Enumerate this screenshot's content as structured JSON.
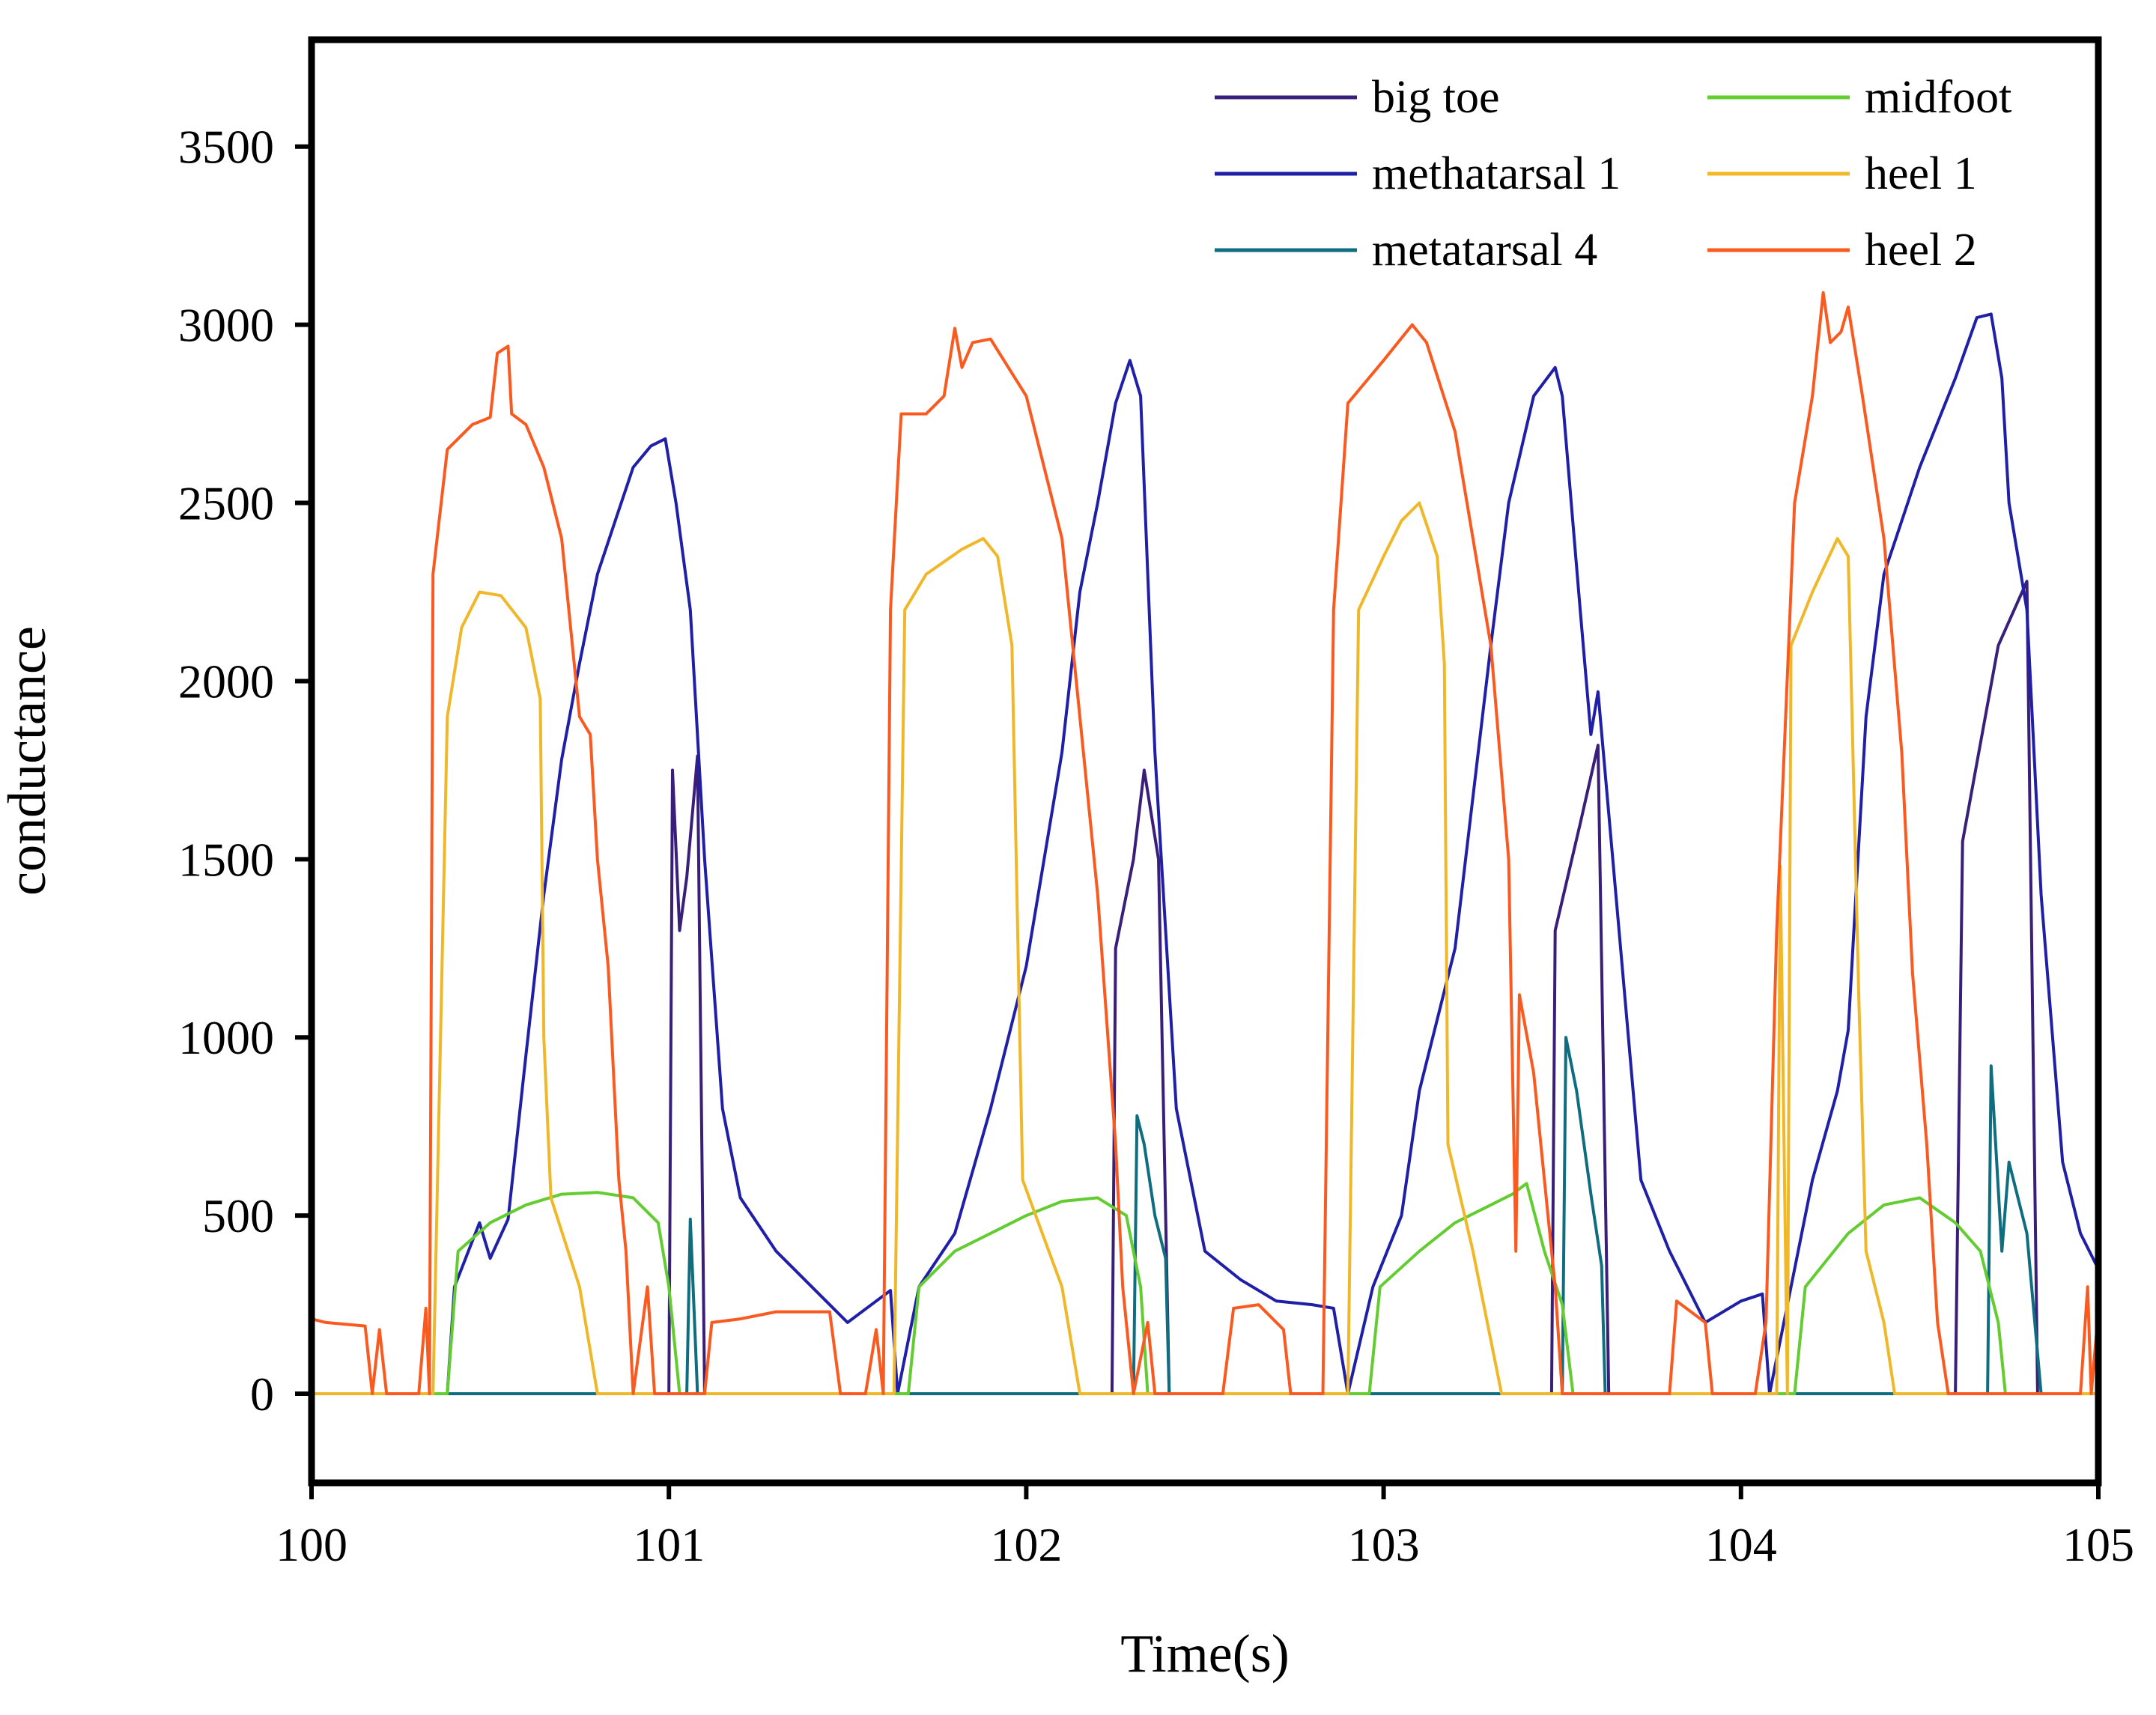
{
  "chart_data": {
    "type": "line",
    "title": "",
    "xlabel": "Time(s)",
    "ylabel": "conductance",
    "xlim": [
      100,
      105
    ],
    "ylim": [
      -250,
      3800
    ],
    "xticks": [
      100,
      101,
      102,
      103,
      104,
      105
    ],
    "yticks": [
      0,
      500,
      1000,
      1500,
      2000,
      2500,
      3000,
      3500
    ],
    "grid": false,
    "legend_position": "top-right",
    "series": [
      {
        "name": "big toe",
        "color": "#3a1f7a",
        "points": [
          [
            100,
            0
          ],
          [
            101.0,
            0
          ],
          [
            101.01,
            1750
          ],
          [
            101.03,
            1300
          ],
          [
            101.05,
            1450
          ],
          [
            101.08,
            1790
          ],
          [
            101.1,
            0
          ],
          [
            102.24,
            0
          ],
          [
            102.25,
            1250
          ],
          [
            102.3,
            1500
          ],
          [
            102.33,
            1750
          ],
          [
            102.37,
            1500
          ],
          [
            102.4,
            0
          ],
          [
            103.47,
            0
          ],
          [
            103.48,
            1300
          ],
          [
            103.55,
            1600
          ],
          [
            103.6,
            1820
          ],
          [
            103.63,
            0
          ],
          [
            104.6,
            0
          ],
          [
            104.62,
            1550
          ],
          [
            104.72,
            2100
          ],
          [
            104.8,
            2280
          ],
          [
            104.83,
            0
          ],
          [
            105,
            0
          ]
        ]
      },
      {
        "name": "methatarsal 1",
        "color": "#1f1fa8",
        "points": [
          [
            100,
            0
          ],
          [
            100.38,
            0
          ],
          [
            100.4,
            300
          ],
          [
            100.47,
            480
          ],
          [
            100.5,
            380
          ],
          [
            100.55,
            490
          ],
          [
            100.6,
            950
          ],
          [
            100.65,
            1400
          ],
          [
            100.7,
            1780
          ],
          [
            100.75,
            2050
          ],
          [
            100.8,
            2300
          ],
          [
            100.85,
            2450
          ],
          [
            100.9,
            2600
          ],
          [
            100.95,
            2660
          ],
          [
            100.99,
            2680
          ],
          [
            101.02,
            2500
          ],
          [
            101.06,
            2200
          ],
          [
            101.1,
            1500
          ],
          [
            101.15,
            800
          ],
          [
            101.2,
            550
          ],
          [
            101.3,
            400
          ],
          [
            101.4,
            300
          ],
          [
            101.5,
            200
          ],
          [
            101.58,
            260
          ],
          [
            101.62,
            290
          ],
          [
            101.64,
            0
          ],
          [
            101.7,
            300
          ],
          [
            101.8,
            450
          ],
          [
            101.9,
            800
          ],
          [
            102.0,
            1200
          ],
          [
            102.1,
            1800
          ],
          [
            102.15,
            2250
          ],
          [
            102.2,
            2500
          ],
          [
            102.25,
            2780
          ],
          [
            102.29,
            2900
          ],
          [
            102.32,
            2800
          ],
          [
            102.36,
            1800
          ],
          [
            102.42,
            800
          ],
          [
            102.5,
            400
          ],
          [
            102.6,
            320
          ],
          [
            102.7,
            260
          ],
          [
            102.8,
            250
          ],
          [
            102.86,
            240
          ],
          [
            102.9,
            0
          ],
          [
            102.97,
            300
          ],
          [
            103.05,
            500
          ],
          [
            103.1,
            850
          ],
          [
            103.2,
            1250
          ],
          [
            103.3,
            2100
          ],
          [
            103.35,
            2500
          ],
          [
            103.42,
            2800
          ],
          [
            103.48,
            2880
          ],
          [
            103.5,
            2800
          ],
          [
            103.55,
            2200
          ],
          [
            103.58,
            1850
          ],
          [
            103.6,
            1970
          ],
          [
            103.65,
            1400
          ],
          [
            103.72,
            600
          ],
          [
            103.8,
            400
          ],
          [
            103.9,
            200
          ],
          [
            104.0,
            260
          ],
          [
            104.06,
            280
          ],
          [
            104.08,
            0
          ],
          [
            104.15,
            350
          ],
          [
            104.2,
            600
          ],
          [
            104.27,
            850
          ],
          [
            104.3,
            1020
          ],
          [
            104.35,
            1900
          ],
          [
            104.4,
            2300
          ],
          [
            104.5,
            2600
          ],
          [
            104.6,
            2850
          ],
          [
            104.66,
            3020
          ],
          [
            104.7,
            3030
          ],
          [
            104.73,
            2850
          ],
          [
            104.75,
            2500
          ],
          [
            104.8,
            2200
          ],
          [
            104.84,
            1400
          ],
          [
            104.9,
            650
          ],
          [
            104.95,
            450
          ],
          [
            105,
            350
          ]
        ]
      },
      {
        "name": "metatarsal 4",
        "color": "#0e6e80",
        "points": [
          [
            100,
            0
          ],
          [
            101.05,
            0
          ],
          [
            101.06,
            490
          ],
          [
            101.08,
            0
          ],
          [
            102.3,
            0
          ],
          [
            102.31,
            780
          ],
          [
            102.33,
            700
          ],
          [
            102.36,
            500
          ],
          [
            102.39,
            380
          ],
          [
            102.4,
            0
          ],
          [
            103.5,
            0
          ],
          [
            103.51,
            1000
          ],
          [
            103.54,
            850
          ],
          [
            103.58,
            560
          ],
          [
            103.61,
            360
          ],
          [
            103.62,
            0
          ],
          [
            104.69,
            0
          ],
          [
            104.7,
            920
          ],
          [
            104.73,
            400
          ],
          [
            104.75,
            650
          ],
          [
            104.8,
            450
          ],
          [
            104.84,
            0
          ],
          [
            105,
            0
          ]
        ]
      },
      {
        "name": "midfoot",
        "color": "#62cc30",
        "points": [
          [
            100,
            0
          ],
          [
            100.38,
            0
          ],
          [
            100.41,
            400
          ],
          [
            100.5,
            480
          ],
          [
            100.6,
            530
          ],
          [
            100.7,
            560
          ],
          [
            100.8,
            565
          ],
          [
            100.9,
            550
          ],
          [
            100.97,
            480
          ],
          [
            101.0,
            300
          ],
          [
            101.03,
            0
          ],
          [
            101.67,
            0
          ],
          [
            101.7,
            300
          ],
          [
            101.8,
            400
          ],
          [
            101.9,
            450
          ],
          [
            102.0,
            500
          ],
          [
            102.1,
            540
          ],
          [
            102.2,
            550
          ],
          [
            102.28,
            500
          ],
          [
            102.32,
            300
          ],
          [
            102.34,
            0
          ],
          [
            102.96,
            0
          ],
          [
            102.99,
            300
          ],
          [
            103.1,
            400
          ],
          [
            103.2,
            480
          ],
          [
            103.3,
            530
          ],
          [
            103.36,
            560
          ],
          [
            103.4,
            590
          ],
          [
            103.45,
            400
          ],
          [
            103.5,
            250
          ],
          [
            103.53,
            0
          ],
          [
            104.15,
            0
          ],
          [
            104.18,
            300
          ],
          [
            104.3,
            450
          ],
          [
            104.4,
            530
          ],
          [
            104.5,
            550
          ],
          [
            104.6,
            480
          ],
          [
            104.67,
            400
          ],
          [
            104.72,
            200
          ],
          [
            104.74,
            0
          ],
          [
            105,
            0
          ]
        ]
      },
      {
        "name": "heel 1",
        "color": "#f0b829",
        "points": [
          [
            100,
            0
          ],
          [
            100.34,
            0
          ],
          [
            100.38,
            1900
          ],
          [
            100.42,
            2150
          ],
          [
            100.47,
            2250
          ],
          [
            100.53,
            2240
          ],
          [
            100.6,
            2150
          ],
          [
            100.64,
            1950
          ],
          [
            100.65,
            1000
          ],
          [
            100.67,
            550
          ],
          [
            100.75,
            300
          ],
          [
            100.8,
            0
          ],
          [
            101.63,
            0
          ],
          [
            101.66,
            2200
          ],
          [
            101.72,
            2300
          ],
          [
            101.82,
            2370
          ],
          [
            101.88,
            2400
          ],
          [
            101.92,
            2350
          ],
          [
            101.96,
            2100
          ],
          [
            101.99,
            600
          ],
          [
            102.1,
            300
          ],
          [
            102.15,
            0
          ],
          [
            102.9,
            0
          ],
          [
            102.93,
            2200
          ],
          [
            103.0,
            2350
          ],
          [
            103.05,
            2450
          ],
          [
            103.1,
            2500
          ],
          [
            103.15,
            2350
          ],
          [
            103.17,
            2050
          ],
          [
            103.18,
            700
          ],
          [
            103.25,
            400
          ],
          [
            103.3,
            150
          ],
          [
            103.33,
            0
          ],
          [
            104.1,
            0
          ],
          [
            104.11,
            1480
          ],
          [
            104.13,
            0
          ],
          [
            104.14,
            2100
          ],
          [
            104.2,
            2250
          ],
          [
            104.27,
            2400
          ],
          [
            104.3,
            2350
          ],
          [
            104.33,
            1100
          ],
          [
            104.35,
            400
          ],
          [
            104.4,
            200
          ],
          [
            104.43,
            0
          ],
          [
            105,
            0
          ]
        ]
      },
      {
        "name": "heel 2",
        "color": "#fa5a20",
        "points": [
          [
            100,
            210
          ],
          [
            100.04,
            200
          ],
          [
            100.15,
            190
          ],
          [
            100.17,
            0
          ],
          [
            100.19,
            180
          ],
          [
            100.21,
            0
          ],
          [
            100.3,
            0
          ],
          [
            100.32,
            240
          ],
          [
            100.33,
            0
          ],
          [
            100.34,
            2300
          ],
          [
            100.38,
            2650
          ],
          [
            100.45,
            2720
          ],
          [
            100.5,
            2740
          ],
          [
            100.52,
            2920
          ],
          [
            100.55,
            2940
          ],
          [
            100.56,
            2750
          ],
          [
            100.6,
            2720
          ],
          [
            100.65,
            2600
          ],
          [
            100.7,
            2400
          ],
          [
            100.75,
            1900
          ],
          [
            100.78,
            1850
          ],
          [
            100.8,
            1500
          ],
          [
            100.83,
            1200
          ],
          [
            100.86,
            600
          ],
          [
            100.88,
            400
          ],
          [
            100.9,
            0
          ],
          [
            100.94,
            300
          ],
          [
            100.96,
            0
          ],
          [
            101.1,
            0
          ],
          [
            101.12,
            200
          ],
          [
            101.2,
            210
          ],
          [
            101.3,
            230
          ],
          [
            101.45,
            230
          ],
          [
            101.48,
            0
          ],
          [
            101.55,
            0
          ],
          [
            101.58,
            180
          ],
          [
            101.6,
            0
          ],
          [
            101.62,
            2200
          ],
          [
            101.65,
            2750
          ],
          [
            101.72,
            2750
          ],
          [
            101.77,
            2800
          ],
          [
            101.8,
            2990
          ],
          [
            101.82,
            2880
          ],
          [
            101.85,
            2950
          ],
          [
            101.9,
            2960
          ],
          [
            102.0,
            2800
          ],
          [
            102.1,
            2400
          ],
          [
            102.2,
            1400
          ],
          [
            102.25,
            700
          ],
          [
            102.27,
            300
          ],
          [
            102.3,
            0
          ],
          [
            102.34,
            200
          ],
          [
            102.36,
            0
          ],
          [
            102.55,
            0
          ],
          [
            102.58,
            240
          ],
          [
            102.65,
            250
          ],
          [
            102.72,
            180
          ],
          [
            102.74,
            0
          ],
          [
            102.8,
            0
          ],
          [
            102.83,
            0
          ],
          [
            102.86,
            2200
          ],
          [
            102.9,
            2780
          ],
          [
            103.0,
            2900
          ],
          [
            103.08,
            3000
          ],
          [
            103.12,
            2950
          ],
          [
            103.2,
            2700
          ],
          [
            103.3,
            2100
          ],
          [
            103.35,
            1500
          ],
          [
            103.37,
            400
          ],
          [
            103.38,
            1120
          ],
          [
            103.42,
            900
          ],
          [
            103.46,
            500
          ],
          [
            103.48,
            300
          ],
          [
            103.5,
            0
          ],
          [
            103.8,
            0
          ],
          [
            103.82,
            260
          ],
          [
            103.9,
            200
          ],
          [
            103.92,
            0
          ],
          [
            104.04,
            0
          ],
          [
            104.07,
            200
          ],
          [
            104.1,
            1300
          ],
          [
            104.15,
            2500
          ],
          [
            104.2,
            2800
          ],
          [
            104.23,
            3090
          ],
          [
            104.25,
            2950
          ],
          [
            104.28,
            2980
          ],
          [
            104.3,
            3050
          ],
          [
            104.34,
            2800
          ],
          [
            104.4,
            2400
          ],
          [
            104.45,
            1800
          ],
          [
            104.48,
            1180
          ],
          [
            104.52,
            700
          ],
          [
            104.55,
            200
          ],
          [
            104.58,
            0
          ],
          [
            104.65,
            0
          ],
          [
            104.95,
            0
          ],
          [
            104.97,
            300
          ],
          [
            104.98,
            0
          ],
          [
            105,
            230
          ]
        ]
      }
    ]
  }
}
